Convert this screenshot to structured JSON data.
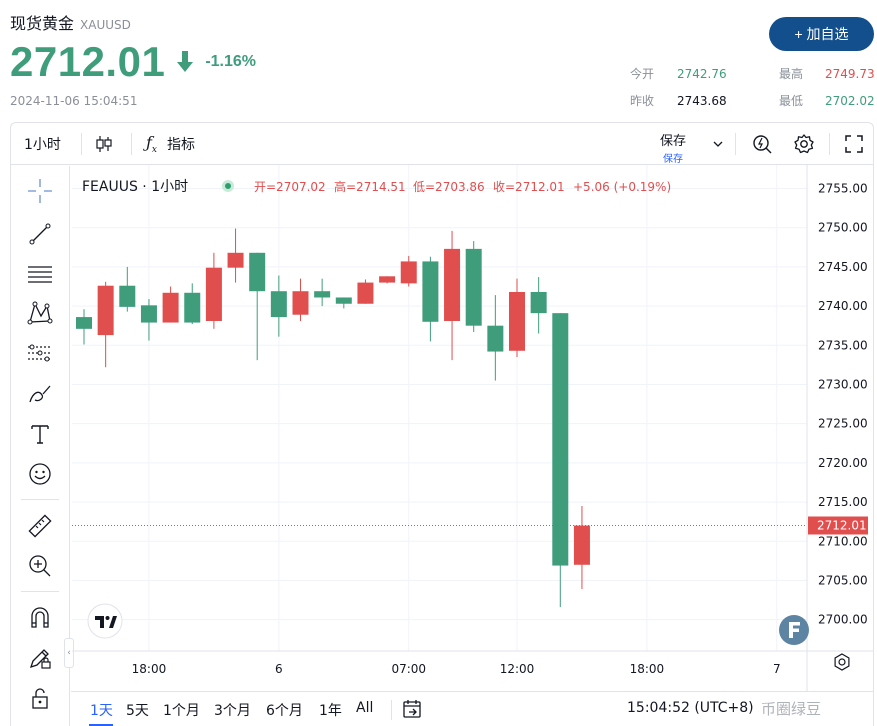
{
  "header": {
    "name": "现货黄金",
    "symbol": "XAUUSD",
    "price": "2712.01",
    "change_pct": "-1.16%",
    "timestamp": "2024-11-06 15:04:51",
    "add_button": "+ 加自选",
    "stats": {
      "open_label": "今开",
      "open_value": "2742.76",
      "prev_label": "昨收",
      "prev_value": "2743.68",
      "high_label": "最高",
      "high_value": "2749.73",
      "low_label": "最低",
      "low_value": "2702.02"
    }
  },
  "toolbar": {
    "interval": "1小时",
    "indicators": "指标",
    "save": "保存",
    "save_sub": "保存"
  },
  "legend": {
    "symbol": "FEAUUS · 1小时",
    "open": "开=2707.02",
    "high": "高=2714.51",
    "low": "低=2703.86",
    "close": "收=2712.01",
    "change": "+5.06 (+0.19%)"
  },
  "bottom": {
    "ranges": [
      "1天",
      "5天",
      "1个月",
      "3个月",
      "6个月",
      "1年",
      "All"
    ],
    "active_range": 0,
    "clock": "15:04:52 (UTC+8)",
    "watermark": "币圈绿豆"
  },
  "colors": {
    "up": "#e04e4e",
    "down": "#3f9d7c",
    "price_line": "#e04e4e"
  },
  "icons": [
    "crosshair-icon",
    "trend-line-icon",
    "fib-icon",
    "pattern-icon",
    "forecast-icon",
    "brush-icon",
    "text-icon",
    "emoji-icon",
    "ruler-icon",
    "zoom-icon",
    "magnet-icon",
    "lock-draw-icon",
    "lock-icon",
    "candles-icon",
    "fx-icon",
    "alert-icon",
    "gear-icon",
    "fullscreen-icon",
    "replay-icon",
    "tv-logo-icon",
    "f-logo-icon"
  ],
  "chart_data": {
    "type": "candlestick",
    "interval": "1h",
    "y_range": [
      2696,
      2758
    ],
    "y_ticks": [
      2700,
      2705,
      2710,
      2715,
      2720,
      2725,
      2730,
      2735,
      2740,
      2745,
      2750,
      2755
    ],
    "y_tick_labels": [
      "2700.00",
      "2705.00",
      "2710.00",
      "2715.00",
      "2720.00",
      "2725.00",
      "2730.00",
      "2735.00",
      "2740.00",
      "2745.00",
      "2750.00",
      "2755.00"
    ],
    "x_tick_labels": [
      {
        "label": "18:00",
        "index": 3
      },
      {
        "label": "6",
        "index": 9
      },
      {
        "label": "07:00",
        "index": 15
      },
      {
        "label": "12:00",
        "index": 20
      },
      {
        "label": "18:00",
        "index": 26
      },
      {
        "label": "7",
        "index": 32
      }
    ],
    "last_price": 2712.01,
    "last_price_label": "2712.01",
    "candles": [
      {
        "o": 2738.6,
        "h": 2739.6,
        "l": 2735.1,
        "c": 2737.1
      },
      {
        "o": 2736.3,
        "h": 2743.1,
        "l": 2732.2,
        "c": 2742.6
      },
      {
        "o": 2742.6,
        "h": 2745.0,
        "l": 2739.3,
        "c": 2739.9
      },
      {
        "o": 2740.1,
        "h": 2740.9,
        "l": 2735.6,
        "c": 2737.9
      },
      {
        "o": 2737.9,
        "h": 2742.5,
        "l": 2737.9,
        "c": 2741.7
      },
      {
        "o": 2741.7,
        "h": 2742.9,
        "l": 2737.7,
        "c": 2737.9
      },
      {
        "o": 2738.1,
        "h": 2746.8,
        "l": 2737.1,
        "c": 2744.9
      },
      {
        "o": 2744.9,
        "h": 2749.9,
        "l": 2743.0,
        "c": 2746.8
      },
      {
        "o": 2746.8,
        "h": 2746.8,
        "l": 2733.1,
        "c": 2741.9
      },
      {
        "o": 2741.9,
        "h": 2743.9,
        "l": 2736.1,
        "c": 2738.6
      },
      {
        "o": 2738.9,
        "h": 2743.5,
        "l": 2738.1,
        "c": 2741.9
      },
      {
        "o": 2741.9,
        "h": 2743.5,
        "l": 2740.0,
        "c": 2741.1
      },
      {
        "o": 2741.1,
        "h": 2741.1,
        "l": 2739.7,
        "c": 2740.3
      },
      {
        "o": 2740.3,
        "h": 2743.4,
        "l": 2740.3,
        "c": 2743.0
      },
      {
        "o": 2743.0,
        "h": 2743.8,
        "l": 2742.9,
        "c": 2743.8
      },
      {
        "o": 2742.9,
        "h": 2746.4,
        "l": 2742.5,
        "c": 2745.7
      },
      {
        "o": 2745.7,
        "h": 2746.3,
        "l": 2735.5,
        "c": 2738.0
      },
      {
        "o": 2738.1,
        "h": 2749.6,
        "l": 2733.1,
        "c": 2747.3
      },
      {
        "o": 2747.3,
        "h": 2748.3,
        "l": 2736.7,
        "c": 2737.5
      },
      {
        "o": 2737.5,
        "h": 2741.4,
        "l": 2730.5,
        "c": 2734.2
      },
      {
        "o": 2734.3,
        "h": 2743.5,
        "l": 2733.5,
        "c": 2741.8
      },
      {
        "o": 2741.8,
        "h": 2743.7,
        "l": 2736.5,
        "c": 2739.1
      },
      {
        "o": 2739.1,
        "h": 2739.1,
        "l": 2701.6,
        "c": 2706.9
      },
      {
        "o": 2707.0,
        "h": 2714.5,
        "l": 2703.9,
        "c": 2712.0
      }
    ]
  }
}
